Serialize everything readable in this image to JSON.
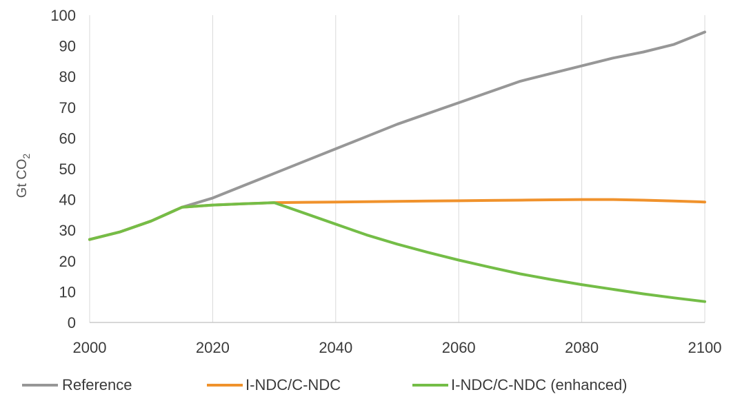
{
  "chart_data": {
    "type": "line",
    "title": "",
    "ylabel": "Gt CO",
    "ylabel_subscript": "2",
    "xlabel": "",
    "xlim": [
      2000,
      2100
    ],
    "ylim": [
      0,
      100
    ],
    "x_ticks": [
      2000,
      2020,
      2040,
      2060,
      2080,
      2100
    ],
    "y_ticks": [
      0,
      10,
      20,
      30,
      40,
      50,
      60,
      70,
      80,
      90,
      100
    ],
    "grid": "vertical",
    "legend_position": "bottom",
    "x": [
      2000,
      2005,
      2010,
      2015,
      2020,
      2025,
      2030,
      2035,
      2040,
      2045,
      2050,
      2055,
      2060,
      2065,
      2070,
      2075,
      2080,
      2085,
      2090,
      2095,
      2100
    ],
    "series": [
      {
        "name": "Reference",
        "color": "#979797",
        "values": [
          27,
          29.5,
          33,
          37.5,
          40.5,
          44.5,
          48.5,
          52.5,
          56.5,
          60.5,
          64.5,
          68,
          71.5,
          75,
          78.5,
          81,
          83.5,
          86,
          88,
          90.5,
          94.5
        ]
      },
      {
        "name": "I-NDC/C-NDC",
        "color": "#f0922c",
        "values": [
          27,
          29.5,
          33,
          37.5,
          38.2,
          38.6,
          39,
          39.1,
          39.2,
          39.3,
          39.4,
          39.5,
          39.6,
          39.7,
          39.8,
          39.9,
          40,
          40,
          39.8,
          39.5,
          39.2
        ]
      },
      {
        "name": "I-NDC/C-NDC (enhanced)",
        "color": "#74bd47",
        "values": [
          27,
          29.5,
          33,
          37.5,
          38.2,
          38.6,
          39,
          35.5,
          32,
          28.5,
          25.5,
          22.8,
          20.3,
          18,
          15.8,
          14,
          12.3,
          10.8,
          9.3,
          8.0,
          6.8
        ]
      }
    ]
  }
}
